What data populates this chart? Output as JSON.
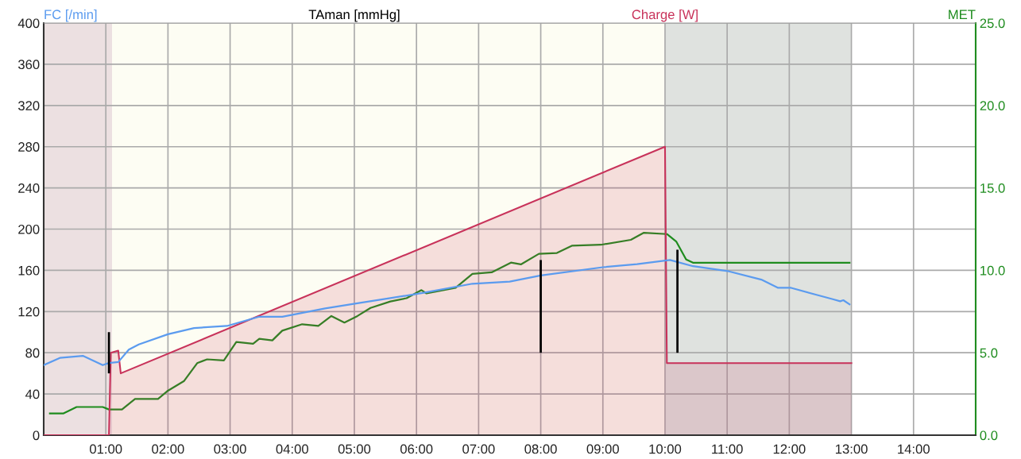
{
  "chart_data": {
    "type": "line",
    "xlim": [
      0,
      15
    ],
    "ylim": [
      0,
      400
    ],
    "y2lim": [
      0,
      25
    ],
    "xticks": [
      {
        "value": 1,
        "label": "01:00"
      },
      {
        "value": 2,
        "label": "02:00"
      },
      {
        "value": 3,
        "label": "03:00"
      },
      {
        "value": 4,
        "label": "04:00"
      },
      {
        "value": 5,
        "label": "05:00"
      },
      {
        "value": 6,
        "label": "06:00"
      },
      {
        "value": 7,
        "label": "07:00"
      },
      {
        "value": 8,
        "label": "08:00"
      },
      {
        "value": 9,
        "label": "09:00"
      },
      {
        "value": 10,
        "label": "10:00"
      },
      {
        "value": 11,
        "label": "11:00"
      },
      {
        "value": 12,
        "label": "12:00"
      },
      {
        "value": 13,
        "label": "13:00"
      },
      {
        "value": 14,
        "label": "14:00"
      }
    ],
    "yticks": [
      0,
      40,
      80,
      120,
      160,
      200,
      240,
      280,
      320,
      360,
      400
    ],
    "y2ticks": [
      {
        "value": 0,
        "label": "0.0"
      },
      {
        "value": 5,
        "label": "5.0"
      },
      {
        "value": 10,
        "label": "10.0"
      },
      {
        "value": 15,
        "label": "15.0"
      },
      {
        "value": 20,
        "label": "20.0"
      },
      {
        "value": 25,
        "label": "25.0"
      }
    ],
    "grid": true,
    "legend": "top",
    "bands": [
      {
        "axis": "x",
        "from": 0,
        "to": 1.1,
        "color": "#ece0e1"
      },
      {
        "axis": "x",
        "from": 1.1,
        "to": 10,
        "color": "#fdfdf3"
      },
      {
        "axis": "x",
        "from": 10,
        "to": 13,
        "color": "#dfe2df"
      }
    ],
    "series": [
      {
        "name": "FC [/min]",
        "color": "#5b9bef",
        "x": [
          0,
          0.26,
          0.63,
          0.95,
          1.05,
          1.2,
          1.37,
          1.53,
          2.0,
          2.42,
          2.95,
          3.47,
          3.84,
          4.53,
          5.05,
          5.58,
          6.1,
          6.9,
          7.5,
          8.0,
          9.0,
          9.55,
          10.08,
          10.45,
          11.03,
          11.55,
          11.82,
          12.03,
          12.45,
          12.7,
          12.82,
          12.87,
          12.97
        ],
        "values": [
          68,
          75,
          77,
          68,
          70,
          71,
          83,
          88,
          98,
          104,
          106,
          115,
          115,
          123,
          128,
          133,
          138,
          147,
          149,
          155,
          163,
          166,
          170,
          164,
          159,
          151,
          143,
          143,
          136,
          132,
          130,
          131,
          127
        ]
      },
      {
        "name": "TAman [mmHg]",
        "type": "bar",
        "color": "#000000",
        "x": [
          1.05,
          8.0,
          10.2
        ],
        "base": [
          60,
          80,
          80
        ],
        "values": [
          40,
          90,
          100
        ]
      },
      {
        "name": "Charge [W]",
        "type": "area",
        "color": "#c8325a",
        "x": [
          0,
          1.05,
          1.08,
          1.2,
          1.24,
          10.0,
          10.03,
          13.0
        ],
        "values": [
          0,
          0,
          80,
          82,
          60,
          280,
          70,
          70
        ]
      },
      {
        "name": "MET",
        "axis": "y2",
        "color": "#1e8c1e",
        "x": [
          0.1,
          0.32,
          0.53,
          0.95,
          1.05,
          1.26,
          1.47,
          1.84,
          2.0,
          2.26,
          2.47,
          2.63,
          2.9,
          3.1,
          3.37,
          3.47,
          3.68,
          3.84,
          4.16,
          4.42,
          4.63,
          4.84,
          5.05,
          5.26,
          5.58,
          5.84,
          6.08,
          6.16,
          6.63,
          6.9,
          7.21,
          7.52,
          7.68,
          7.97,
          8.26,
          8.5,
          8.97,
          9.45,
          9.66,
          10.03,
          10.18,
          10.34,
          10.45,
          12.97
        ],
        "values": [
          1.32,
          1.32,
          1.71,
          1.71,
          1.56,
          1.56,
          2.2,
          2.2,
          2.7,
          3.29,
          4.37,
          4.6,
          4.53,
          5.65,
          5.55,
          5.85,
          5.75,
          6.34,
          6.73,
          6.63,
          7.23,
          6.83,
          7.23,
          7.72,
          8.11,
          8.31,
          8.8,
          8.6,
          8.94,
          9.78,
          9.88,
          10.47,
          10.36,
          11.0,
          11.05,
          11.49,
          11.55,
          11.85,
          12.28,
          12.2,
          11.75,
          10.66,
          10.46,
          10.46
        ]
      }
    ]
  }
}
